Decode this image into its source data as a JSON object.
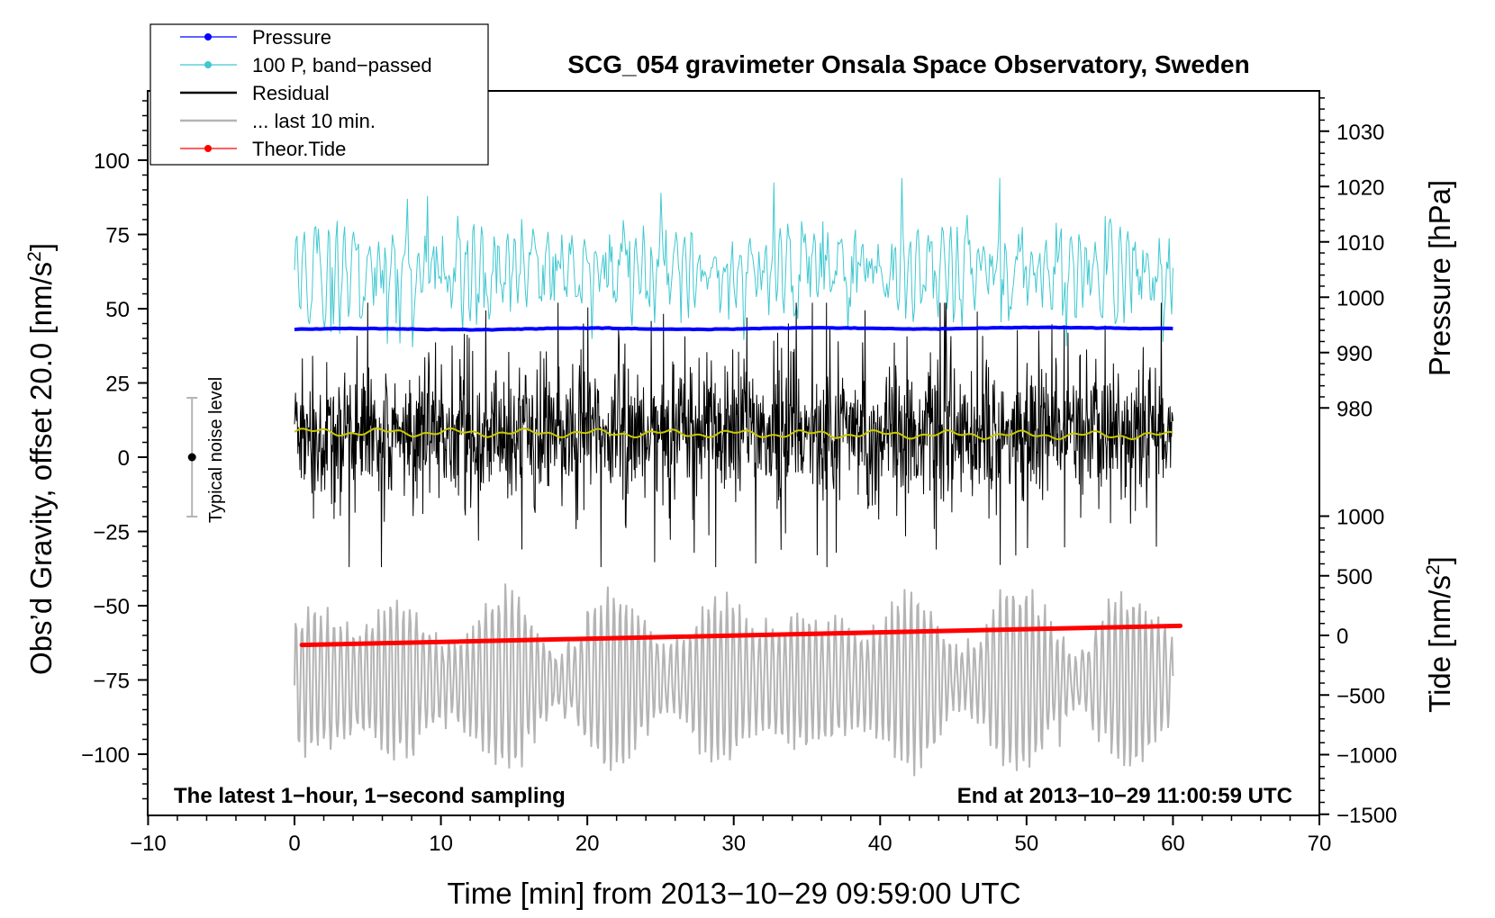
{
  "chart_data": {
    "type": "line",
    "title": "SCG_054 gravimeter Onsala Space Observatory, Sweden",
    "xlabel": "Time [min] from 2013−10−29 09:59:00 UTC",
    "ylabel_left_main": "Obs’d Gravity, offset 20.0 [nm/s",
    "ylabel_left_sup": "2",
    "ylabel_left_close": "]",
    "ylabel_right_top": "Pressure [hPa]",
    "ylabel_right_bottom_main": "Tide [nm/s",
    "ylabel_right_bottom_sup": "2",
    "ylabel_right_bottom_close": "]",
    "xlim": [
      -10,
      70
    ],
    "ylim_left": [
      -120,
      120
    ],
    "x_ticks": [
      "−10",
      "0",
      "10",
      "20",
      "30",
      "40",
      "50",
      "60",
      "70"
    ],
    "y_ticks_left": [
      "100",
      "75",
      "50",
      "25",
      "0",
      "−25",
      "−50",
      "−75",
      "−100"
    ],
    "pressure_ticks": [
      "1030",
      "1020",
      "1010",
      "1000",
      "990",
      "980"
    ],
    "tide_ticks": [
      "1000",
      "500",
      "0",
      "−500",
      "−1000",
      "−1500"
    ],
    "annotation_left": "The latest 1−hour, 1−second sampling",
    "annotation_right": "End at 2013−10−29 11:00:59 UTC",
    "noise_label": "Typical noise level",
    "noise_bar": {
      "center": 0,
      "half_range": 20,
      "x": -7
    },
    "series": [
      {
        "name": "Pressure",
        "color": "#0000ff",
        "axis": "pressure_hPa",
        "x_range": [
          0,
          60
        ],
        "level": 994.2
      },
      {
        "name": "100 P, band−passed",
        "color": "#40c8d0",
        "axis": "gravity_offset",
        "x_range": [
          0,
          60
        ],
        "mean": 63,
        "min": 37,
        "max": 94
      },
      {
        "name": "Residual",
        "color": "#000000",
        "axis": "gravity_offset",
        "x_range": [
          0,
          60
        ],
        "mean": 8,
        "min": -37,
        "max": 52
      },
      {
        "name": "... last 10 min.",
        "color": "#b4b4b4",
        "axis": "gravity_offset",
        "x_range": [
          0,
          60
        ],
        "mean": -75,
        "min": -118,
        "max": -35
      },
      {
        "name": "Theor.Tide",
        "color": "#ff0000",
        "axis": "tide_nm_s2",
        "x_range": [
          0.5,
          60.5
        ],
        "start": -80,
        "end": 80
      }
    ],
    "smoothed_residual": {
      "color": "#c8c800",
      "level": 8.5
    }
  }
}
